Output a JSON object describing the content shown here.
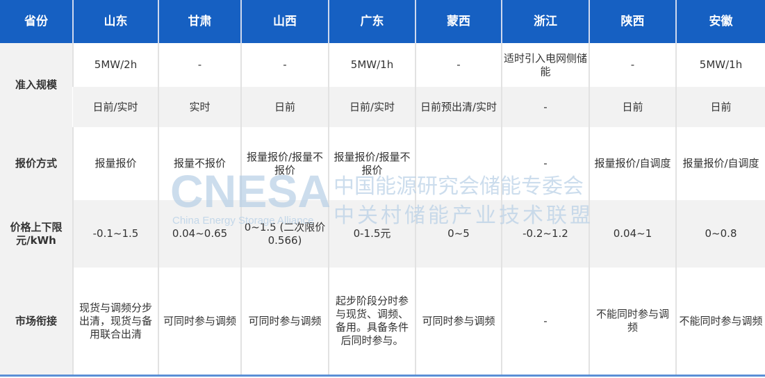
{
  "header": {
    "label": "省份",
    "provinces": [
      "山东",
      "甘肃",
      "山西",
      "广东",
      "蒙西",
      "浙江",
      "陕西",
      "安徽"
    ]
  },
  "rows": {
    "access_scale": {
      "label": "准入规模",
      "capacity": [
        "5MW/2h",
        "-",
        "-",
        "5MW/1h",
        "-",
        "适时引入电网侧储能",
        "-",
        "5MW/1h"
      ],
      "market": [
        "日前/实时",
        "实时",
        "日前",
        "日前/实时",
        "日前预出清/实时",
        "-",
        "日前",
        "日前"
      ]
    },
    "bidding": {
      "label": "报价方式",
      "values": [
        "报量报价",
        "报量不报价",
        "报量报价/报量不报价",
        "报量报价/报量不报价",
        "",
        "-",
        "报量报价/自调度",
        "报量报价/自调度"
      ]
    },
    "price_limit": {
      "label": "价格上下限元/kWh",
      "values": [
        "-0.1~1.5",
        "0.04~0.65",
        "0~1.5 (二次限价0.566)",
        "0-1.5元",
        "0~5",
        "-0.2~1.2",
        "0.04~1",
        "0~0.8"
      ]
    },
    "market_link": {
      "label": "市场衔接",
      "values": [
        "现货与调频分步出清，现货与备用联合出清",
        "可同时参与调频",
        "可同时参与调频",
        "起步阶段分时参与现货、调频、备用。具备条件后同时参与。",
        "可同时参与调频",
        "-",
        "不能同时参与调频",
        "不能同时参与调频"
      ]
    }
  },
  "watermark": {
    "logo": "CNESA",
    "subtitle": "China Energy Storage Alliance",
    "cn_line1": "中国能源研究会储能专委会",
    "cn_line2": "中关村储能产业技术联盟"
  },
  "colors": {
    "header": "#1660c2",
    "row_alt": "#f2f2f2",
    "bottom_rule": "#5a8fd6"
  }
}
